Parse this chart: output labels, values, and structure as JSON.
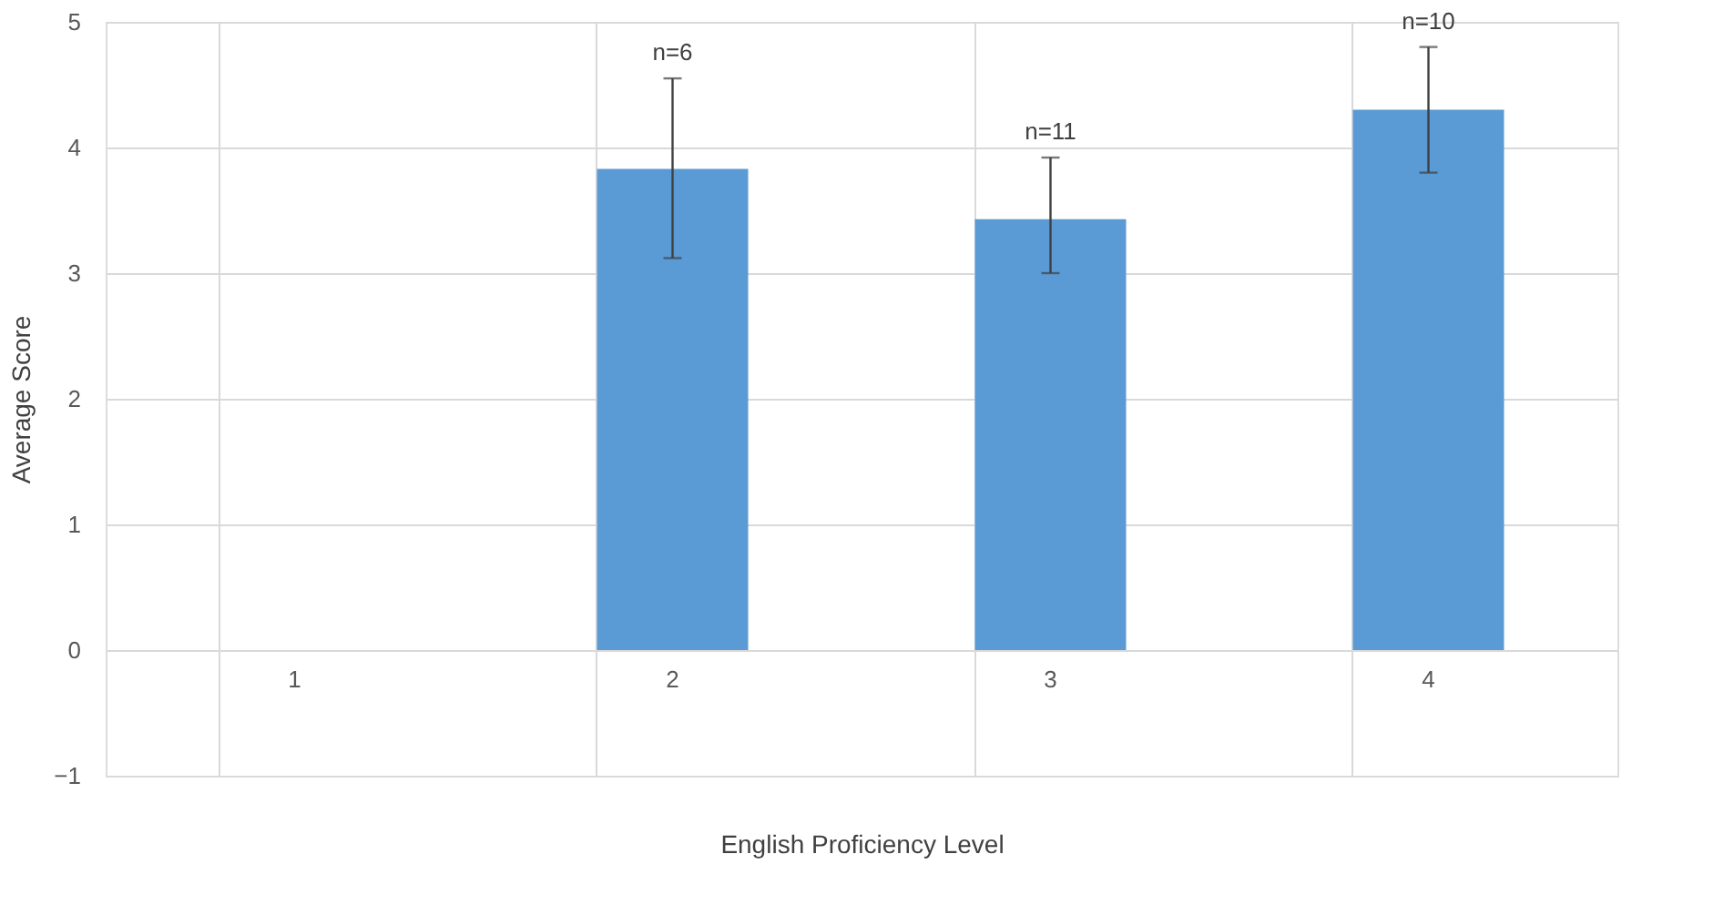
{
  "chart_data": {
    "type": "bar",
    "xlabel": "English Proficiency Level",
    "ylabel": "Average Score",
    "categories": [
      "1",
      "2",
      "3",
      "4"
    ],
    "values": [
      null,
      3.83,
      3.43,
      4.3
    ],
    "errors": [
      null,
      [
        3.12,
        4.55
      ],
      [
        3.0,
        3.92
      ],
      [
        3.8,
        4.8
      ]
    ],
    "color": "#5b9bd5",
    "ylim": [
      -1,
      5
    ],
    "yticks": [
      -1,
      0,
      1,
      2,
      3,
      4,
      5
    ],
    "grid": true,
    "annotations": [
      {
        "text": "n=6",
        "x": "2",
        "y": 4.55
      },
      {
        "text": "n=11",
        "x": "3",
        "y": 3.92
      },
      {
        "text": "n=10",
        "x": "4",
        "y": 4.8
      }
    ]
  }
}
